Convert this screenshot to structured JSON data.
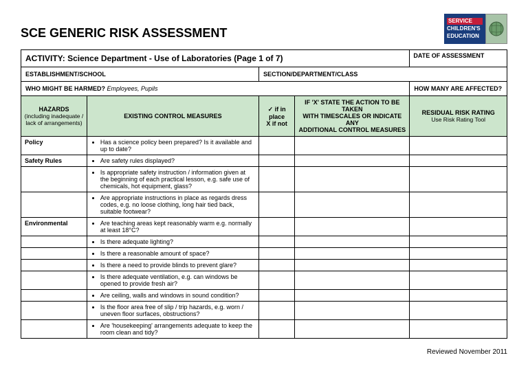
{
  "header": {
    "title": "SCE GENERIC RISK ASSESSMENT",
    "logo": {
      "line1": "SERVICE",
      "line2": "CHILDREN'S",
      "line3": "EDUCATION"
    }
  },
  "activity": {
    "label": "ACTIVITY:",
    "text": "Science Department - Use of Laboratories (Page 1 of 7)",
    "date_label": "DATE OF ASSESSMENT"
  },
  "info": {
    "establishment": "ESTABLISHMENT/SCHOOL",
    "section": "SECTION/DEPARTMENT/CLASS",
    "who_label": "WHO MIGHT BE HARMED?",
    "who_value": "Employees, Pupils",
    "how_many": "HOW MANY ARE AFFECTED?"
  },
  "columns": {
    "hazards": "HAZARDS",
    "hazards_sub": "(including inadequate / lack of arrangements)",
    "existing": "EXISTING CONTROL MEASURES",
    "check_l1": "✓ if in",
    "check_l2": "place",
    "check_l3": "X if not",
    "action_l1": "IF 'X' STATE THE ACTION TO BE TAKEN",
    "action_l2": "WITH TIMESCALES OR INDICATE ANY",
    "action_l3": "ADDITIONAL CONTROL MEASURES",
    "risk": "RESIDUAL RISK RATING",
    "risk_sub": "Use Risk Rating Tool"
  },
  "rows": [
    {
      "hazard": "Policy",
      "measure": "Has a science policy been prepared?  Is it available and up to date?"
    },
    {
      "hazard": "Safety Rules",
      "measure": "Are safety rules displayed?"
    },
    {
      "hazard": "",
      "measure": "Is appropriate safety instruction / information given at the beginning of each practical lesson, e.g. safe use of chemicals, hot equipment, glass?"
    },
    {
      "hazard": "",
      "measure": "Are appropriate instructions in place as regards dress codes, e.g. no loose clothing, long hair tied back, suitable footwear?"
    },
    {
      "hazard": "Environmental",
      "measure": "Are teaching areas kept reasonably warm e.g. normally at least 18°C?"
    },
    {
      "hazard": "",
      "measure": "Is there adequate lighting?"
    },
    {
      "hazard": "",
      "measure": "Is there a reasonable amount of space?"
    },
    {
      "hazard": "",
      "measure": "Is there a need to provide blinds to prevent glare?"
    },
    {
      "hazard": "",
      "measure": "Is there adequate ventilation, e.g. can windows be opened to provide fresh air?"
    },
    {
      "hazard": "",
      "measure": "Are ceiling, walls and windows in sound condition?"
    },
    {
      "hazard": "",
      "measure": "Is the floor area free of slip / trip hazards, e.g. worn / uneven floor surfaces, obstructions?"
    },
    {
      "hazard": "",
      "measure": "Are 'housekeeping' arrangements adequate to keep the room clean and tidy?"
    }
  ],
  "footer": "Reviewed November 2011",
  "style": {
    "green": "#cce5cc",
    "logo_blue": "#1a3d7c",
    "logo_red": "#c41e3a"
  }
}
